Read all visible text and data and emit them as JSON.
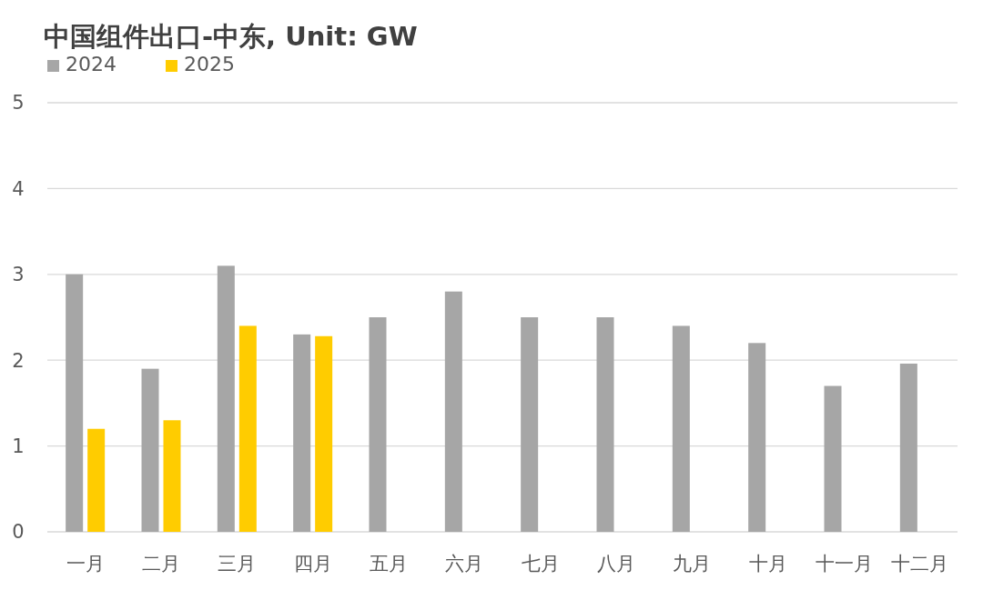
{
  "chart_data": {
    "type": "bar",
    "title": "中国组件出口-中东, Unit: GW",
    "categories": [
      "一月",
      "二月",
      "三月",
      "四月",
      "五月",
      "六月",
      "七月",
      "八月",
      "九月",
      "十月",
      "十一月",
      "十二月"
    ],
    "series": [
      {
        "name": "2024",
        "color": "#a6a6a6",
        "values": [
          3.0,
          1.9,
          3.1,
          2.3,
          2.5,
          2.8,
          2.5,
          2.5,
          2.4,
          2.2,
          1.7,
          1.96
        ]
      },
      {
        "name": "2025",
        "color": "#ffcc00",
        "values": [
          1.2,
          1.3,
          2.4,
          2.28,
          null,
          null,
          null,
          null,
          null,
          null,
          null,
          null
        ]
      }
    ],
    "ylim": [
      0,
      5
    ],
    "yticks": [
      0,
      1,
      2,
      3,
      4,
      5
    ],
    "grid": "y",
    "legend": "top left"
  }
}
